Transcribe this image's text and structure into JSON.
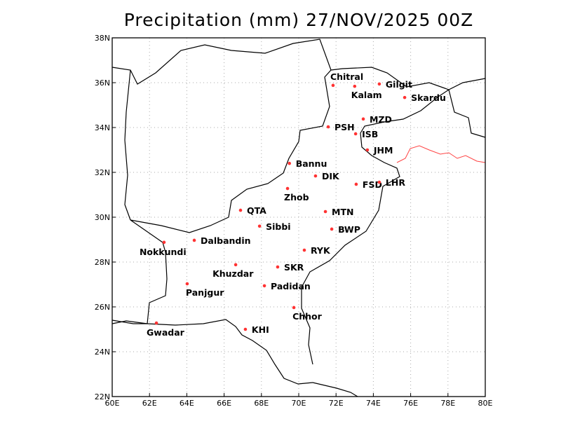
{
  "title": "Precipitation (mm) 27/NOV/2025 00Z",
  "map": {
    "lon_range": [
      60,
      80
    ],
    "lat_range": [
      22,
      38
    ],
    "grid": "dotted",
    "lon_ticks": [
      "60E",
      "62E",
      "64E",
      "66E",
      "68E",
      "70E",
      "72E",
      "74E",
      "76E",
      "78E",
      "80E"
    ],
    "lat_ticks": [
      "22N",
      "24N",
      "26N",
      "28N",
      "30N",
      "32N",
      "34N",
      "36N",
      "38N"
    ],
    "station_color": "#ff3333",
    "disputed_border_color": "#ff4444",
    "border_color": "#000000"
  },
  "stations": [
    {
      "name": "Chitral",
      "lon": 71.84,
      "lat": 35.88
    },
    {
      "name": "Kalam",
      "lon": 73.0,
      "lat": 35.84
    },
    {
      "name": "Gilgit",
      "lon": 74.32,
      "lat": 35.94
    },
    {
      "name": "Skardu",
      "lon": 75.68,
      "lat": 35.34
    },
    {
      "name": "MZD",
      "lon": 73.46,
      "lat": 34.38
    },
    {
      "name": "PSH",
      "lon": 71.58,
      "lat": 34.03
    },
    {
      "name": "ISB",
      "lon": 73.05,
      "lat": 33.72
    },
    {
      "name": "JHM",
      "lon": 73.68,
      "lat": 33.0
    },
    {
      "name": "Bannu",
      "lon": 69.5,
      "lat": 32.4
    },
    {
      "name": "DIK",
      "lon": 70.9,
      "lat": 31.84
    },
    {
      "name": "FSD",
      "lon": 73.08,
      "lat": 31.47
    },
    {
      "name": "LHR",
      "lon": 74.32,
      "lat": 31.56
    },
    {
      "name": "Zhob",
      "lon": 69.4,
      "lat": 31.28
    },
    {
      "name": "QTA",
      "lon": 66.88,
      "lat": 30.31
    },
    {
      "name": "MTN",
      "lon": 71.43,
      "lat": 30.25
    },
    {
      "name": "Sibbi",
      "lon": 67.9,
      "lat": 29.6
    },
    {
      "name": "BWP",
      "lon": 71.77,
      "lat": 29.47
    },
    {
      "name": "Dalbandin",
      "lon": 64.4,
      "lat": 28.97
    },
    {
      "name": "Nokkundi",
      "lon": 62.78,
      "lat": 28.88
    },
    {
      "name": "RYK",
      "lon": 70.3,
      "lat": 28.53
    },
    {
      "name": "Khuzdar",
      "lon": 66.62,
      "lat": 27.88
    },
    {
      "name": "SKR",
      "lon": 68.87,
      "lat": 27.78
    },
    {
      "name": "Padidan",
      "lon": 68.16,
      "lat": 26.94
    },
    {
      "name": "Panjgur",
      "lon": 64.02,
      "lat": 27.03
    },
    {
      "name": "Chhor",
      "lon": 69.74,
      "lat": 25.97
    },
    {
      "name": "Gwadar",
      "lon": 62.37,
      "lat": 25.28
    },
    {
      "name": "KHI",
      "lon": 67.14,
      "lat": 25.0
    }
  ]
}
